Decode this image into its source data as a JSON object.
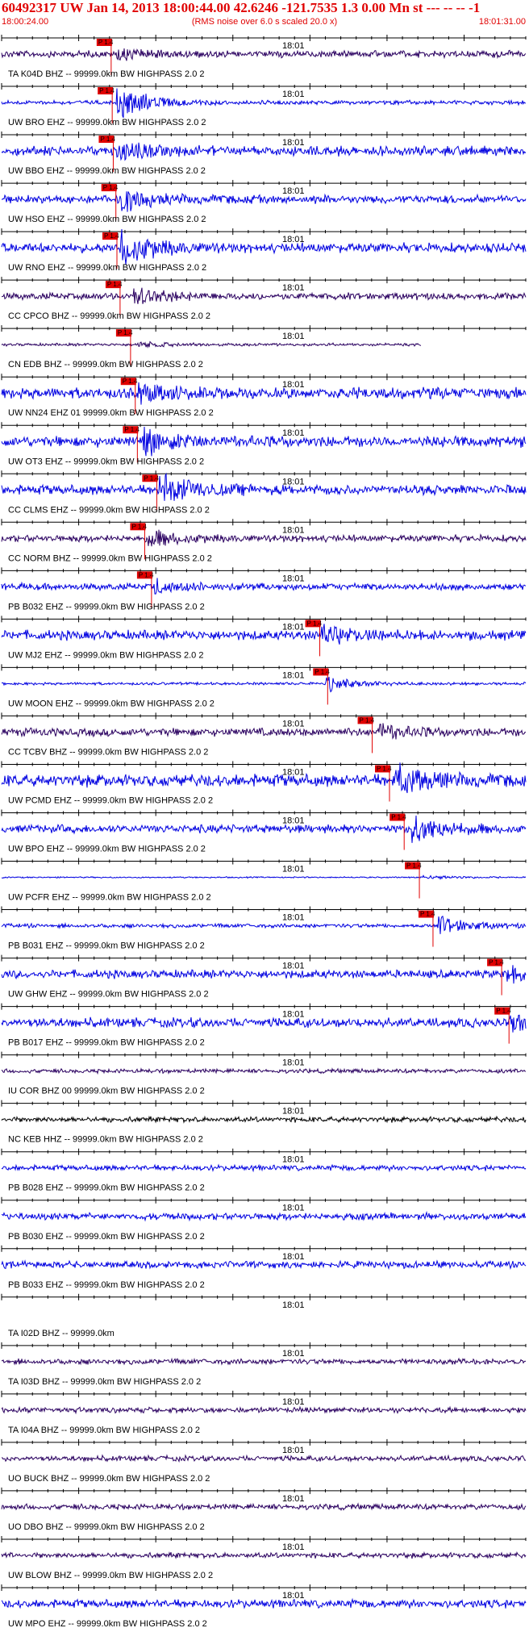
{
  "header": {
    "title": "60492317 UW Jan 14, 2013 18:00:44.00   42.6246 -121.7535  1.3 0.00 Mn st --- -- --  -1",
    "start_time": "18:00:24.00",
    "note": "(RMS noise over 6.0 s scaled 20.0 x)",
    "end_time": "18:01:31.00"
  },
  "chart_data": {
    "type": "line",
    "title": "60492317 UW Jan 14, 2013 18:00:44.00   42.6246 -121.7535  1.3 0.00 Mn st --- -- --  -1",
    "time_range": [
      "18:00:24.00",
      "18:01:31.00"
    ],
    "center_tick_label": "18:01",
    "pick_label": "P 1.4",
    "colors": {
      "blue": "#0000e0",
      "purple": "#2a0060",
      "black": "#000000",
      "pick": "#e00000"
    },
    "traces": [
      {
        "label": "TA K04D BHZ -- 99999.0km BW  HIGHPASS  2.0  2",
        "color": "purple",
        "pick": 0.209,
        "amp": 5,
        "burst": 0.22,
        "burst_amp": 7,
        "quiet_after": null
      },
      {
        "label": "UW BRO EHZ -- 99999.0km BW  HIGHPASS  2.0  2",
        "color": "blue",
        "pick": 0.211,
        "amp": 3,
        "burst": 0.22,
        "burst_amp": 24,
        "quiet_after": null
      },
      {
        "label": "UW BBO EHZ -- 99999.0km BW  HIGHPASS  2.0  2",
        "color": "blue",
        "pick": 0.213,
        "amp": 7,
        "burst": 0.22,
        "burst_amp": 12,
        "quiet_after": null
      },
      {
        "label": "UW HSO EHZ -- 99999.0km BW  HIGHPASS  2.0  2",
        "color": "blue",
        "pick": 0.218,
        "amp": 6,
        "burst": 0.225,
        "burst_amp": 16,
        "quiet_after": null
      },
      {
        "label": "UW RNO EHZ -- 99999.0km BW  HIGHPASS  2.0  2",
        "color": "blue",
        "pick": 0.22,
        "amp": 7,
        "burst": 0.225,
        "burst_amp": 26,
        "quiet_after": null
      },
      {
        "label": "CC CPCO BHZ -- 99999.0km BW  HIGHPASS  2.0  2",
        "color": "purple",
        "pick": 0.226,
        "amp": 5,
        "burst": 0.25,
        "burst_amp": 12,
        "quiet_after": null
      },
      {
        "label": "CN EDB BHZ -- 99999.0km BW  HIGHPASS  2.0  2",
        "color": "purple",
        "pick": 0.246,
        "amp": 2,
        "burst": 0.26,
        "burst_amp": 4,
        "quiet_after": 0.8
      },
      {
        "label": "UW NN24 EHZ 01 99999.0km BW  HIGHPASS  2.0  2",
        "color": "blue",
        "pick": 0.255,
        "amp": 8,
        "burst": 0.26,
        "burst_amp": 12,
        "quiet_after": null
      },
      {
        "label": "UW OT3 EHZ -- 99999.0km BW  HIGHPASS  2.0  2",
        "color": "blue",
        "pick": 0.259,
        "amp": 8,
        "burst": 0.27,
        "burst_amp": 18,
        "quiet_after": null
      },
      {
        "label": "CC CLMS EHZ -- 99999.0km BW  HIGHPASS  2.0  2",
        "color": "blue",
        "pick": 0.296,
        "amp": 7,
        "burst": 0.3,
        "burst_amp": 26,
        "quiet_after": null
      },
      {
        "label": "CC NORM BHZ -- 99999.0km BW  HIGHPASS  2.0  2",
        "color": "purple",
        "pick": 0.273,
        "amp": 5,
        "burst": 0.28,
        "burst_amp": 12,
        "quiet_after": null
      },
      {
        "label": "PB B032 EHZ -- 99999.0km BW  HIGHPASS  2.0  2",
        "color": "blue",
        "pick": 0.286,
        "amp": 5,
        "burst": 0.29,
        "burst_amp": 9,
        "quiet_after": null
      },
      {
        "label": "UW MJ2 EHZ -- 99999.0km BW  HIGHPASS  2.0  2",
        "color": "blue",
        "pick": 0.607,
        "amp": 7,
        "burst": 0.61,
        "burst_amp": 14,
        "quiet_after": null
      },
      {
        "label": "UW MOON EHZ -- 99999.0km BW  HIGHPASS  2.0  2",
        "color": "blue",
        "pick": 0.622,
        "amp": 2,
        "burst": 0.62,
        "burst_amp": 10,
        "quiet_after": null
      },
      {
        "label": "CC TCBV BHZ -- 99999.0km BW  HIGHPASS  2.0  2",
        "color": "purple",
        "pick": 0.707,
        "amp": 6,
        "burst": 0.72,
        "burst_amp": 10,
        "quiet_after": null
      },
      {
        "label": "UW PCMD EHZ -- 99999.0km BW  HIGHPASS  2.0  2",
        "color": "blue",
        "pick": 0.74,
        "amp": 9,
        "burst": 0.75,
        "burst_amp": 22,
        "quiet_after": null
      },
      {
        "label": "UW BPO EHZ -- 99999.0km BW  HIGHPASS  2.0  2",
        "color": "blue",
        "pick": 0.768,
        "amp": 6,
        "burst": 0.78,
        "burst_amp": 22,
        "quiet_after": null
      },
      {
        "label": "UW PCFR EHZ -- 99999.0km BW  HIGHPASS  2.0  2",
        "color": "blue",
        "pick": 0.797,
        "amp": 1,
        "burst": 0.8,
        "burst_amp": 3,
        "quiet_after": null
      },
      {
        "label": "PB B031 EHZ -- 99999.0km BW  HIGHPASS  2.0  2",
        "color": "blue",
        "pick": 0.823,
        "amp": 3,
        "burst": 0.83,
        "burst_amp": 14,
        "quiet_after": null
      },
      {
        "label": "UW GHW EHZ -- 99999.0km BW  HIGHPASS  2.0  2",
        "color": "blue",
        "pick": 0.954,
        "amp": 6,
        "burst": 0.96,
        "burst_amp": 10,
        "quiet_after": null
      },
      {
        "label": "PB B017 EHZ -- 99999.0km BW  HIGHPASS  2.0  2",
        "color": "blue",
        "pick": 0.968,
        "amp": 7,
        "burst": 0.97,
        "burst_amp": 12,
        "quiet_after": null
      },
      {
        "label": "IU COR BHZ 00 99999.0km BW  HIGHPASS  2.0  2",
        "color": "purple",
        "pick": null,
        "amp": 3,
        "burst": null,
        "burst_amp": 0,
        "quiet_after": null
      },
      {
        "label": "NC KEB HHZ -- 99999.0km BW  HIGHPASS  2.0  2",
        "color": "black",
        "pick": null,
        "amp": 4,
        "burst": null,
        "burst_amp": 0,
        "quiet_after": null
      },
      {
        "label": "PB B028 EHZ -- 99999.0km BW  HIGHPASS  2.0  2",
        "color": "blue",
        "pick": null,
        "amp": 4,
        "burst": null,
        "burst_amp": 0,
        "quiet_after": null
      },
      {
        "label": "PB B030 EHZ -- 99999.0km BW  HIGHPASS  2.0  2",
        "color": "blue",
        "pick": null,
        "amp": 5,
        "burst": null,
        "burst_amp": 0,
        "quiet_after": null
      },
      {
        "label": "PB B033 EHZ -- 99999.0km BW  HIGHPASS  2.0  2",
        "color": "blue",
        "pick": null,
        "amp": 5,
        "burst": null,
        "burst_amp": 0,
        "quiet_after": null
      },
      {
        "label": "TA I02D BHZ -- 99999.0km",
        "color": "purple",
        "pick": null,
        "amp": 0,
        "burst": null,
        "burst_amp": 0,
        "quiet_after": null
      },
      {
        "label": "TA I03D BHZ -- 99999.0km BW  HIGHPASS  2.0  2",
        "color": "purple",
        "pick": null,
        "amp": 4,
        "burst": null,
        "burst_amp": 0,
        "quiet_after": null
      },
      {
        "label": "TA I04A BHZ -- 99999.0km BW  HIGHPASS  2.0  2",
        "color": "purple",
        "pick": null,
        "amp": 4,
        "burst": null,
        "burst_amp": 0,
        "quiet_after": null
      },
      {
        "label": "UO BUCK BHZ -- 99999.0km BW  HIGHPASS  2.0  2",
        "color": "purple",
        "pick": null,
        "amp": 4,
        "burst": null,
        "burst_amp": 0,
        "quiet_after": null
      },
      {
        "label": "UO DBO BHZ -- 99999.0km BW  HIGHPASS  2.0  2",
        "color": "purple",
        "pick": null,
        "amp": 4,
        "burst": null,
        "burst_amp": 0,
        "quiet_after": null
      },
      {
        "label": "UW BLOW BHZ -- 99999.0km BW  HIGHPASS  2.0  2",
        "color": "purple",
        "pick": null,
        "amp": 4,
        "burst": null,
        "burst_amp": 0,
        "quiet_after": null
      },
      {
        "label": "UW MPO EHZ -- 99999.0km BW  HIGHPASS  2.0  2",
        "color": "blue",
        "pick": null,
        "amp": 6,
        "burst": null,
        "burst_amp": 0,
        "quiet_after": null
      }
    ]
  }
}
